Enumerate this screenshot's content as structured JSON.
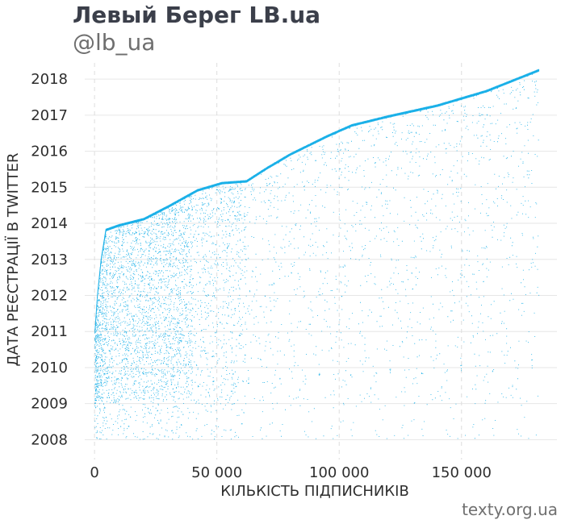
{
  "header": {
    "title": "Левый Берег LB.ua",
    "subtitle": "@lb_ua"
  },
  "footer": {
    "source": "texty.org.ua"
  },
  "colors": {
    "points": "#1ab0e8",
    "grid": "#e6e6e6",
    "vgrid": "#dddddd",
    "text": "#2e2e2e"
  },
  "chart_data": {
    "type": "scatter",
    "title": "",
    "xlabel": "КІЛЬКІСТЬ ПІДПИСНИКІВ",
    "ylabel": "ДАТА РЕЄСТРАЦІЇ В TWITTER",
    "xlim": [
      -4000,
      189000
    ],
    "ylim": [
      2007.45,
      2018.45
    ],
    "x_ticks": [
      0,
      50000,
      100000,
      150000
    ],
    "x_tick_labels": [
      "0",
      "50 000",
      "100 000",
      "150 000"
    ],
    "y_ticks": [
      2008,
      2009,
      2010,
      2011,
      2012,
      2013,
      2014,
      2015,
      2016,
      2017,
      2018
    ],
    "y_tick_labels": [
      "2008",
      "2009",
      "2010",
      "2011",
      "2012",
      "2013",
      "2014",
      "2015",
      "2016",
      "2017",
      "2018"
    ],
    "grid": true,
    "total_followers": 181500,
    "frontier": [
      [
        0,
        2011.0
      ],
      [
        1000,
        2012.0
      ],
      [
        2500,
        2013.0
      ],
      [
        4500,
        2013.85
      ],
      [
        10000,
        2013.98
      ],
      [
        20000,
        2014.15
      ],
      [
        30000,
        2014.5
      ],
      [
        42000,
        2014.95
      ],
      [
        52000,
        2015.15
      ],
      [
        62000,
        2015.2
      ],
      [
        70000,
        2015.55
      ],
      [
        80000,
        2015.95
      ],
      [
        95000,
        2016.45
      ],
      [
        105000,
        2016.75
      ],
      [
        120000,
        2017.0
      ],
      [
        140000,
        2017.3
      ],
      [
        160000,
        2017.7
      ],
      [
        181500,
        2018.28
      ]
    ],
    "density_bands": [
      {
        "x_from": 0,
        "x_to": 1000,
        "density": 1.0
      },
      {
        "x_from": 1000,
        "x_to": 5000,
        "density": 0.75
      },
      {
        "x_from": 5000,
        "x_to": 40000,
        "density": 0.45
      },
      {
        "x_from": 40000,
        "x_to": 62000,
        "density": 0.22
      },
      {
        "x_from": 62000,
        "x_to": 181500,
        "density": 0.08
      }
    ]
  }
}
